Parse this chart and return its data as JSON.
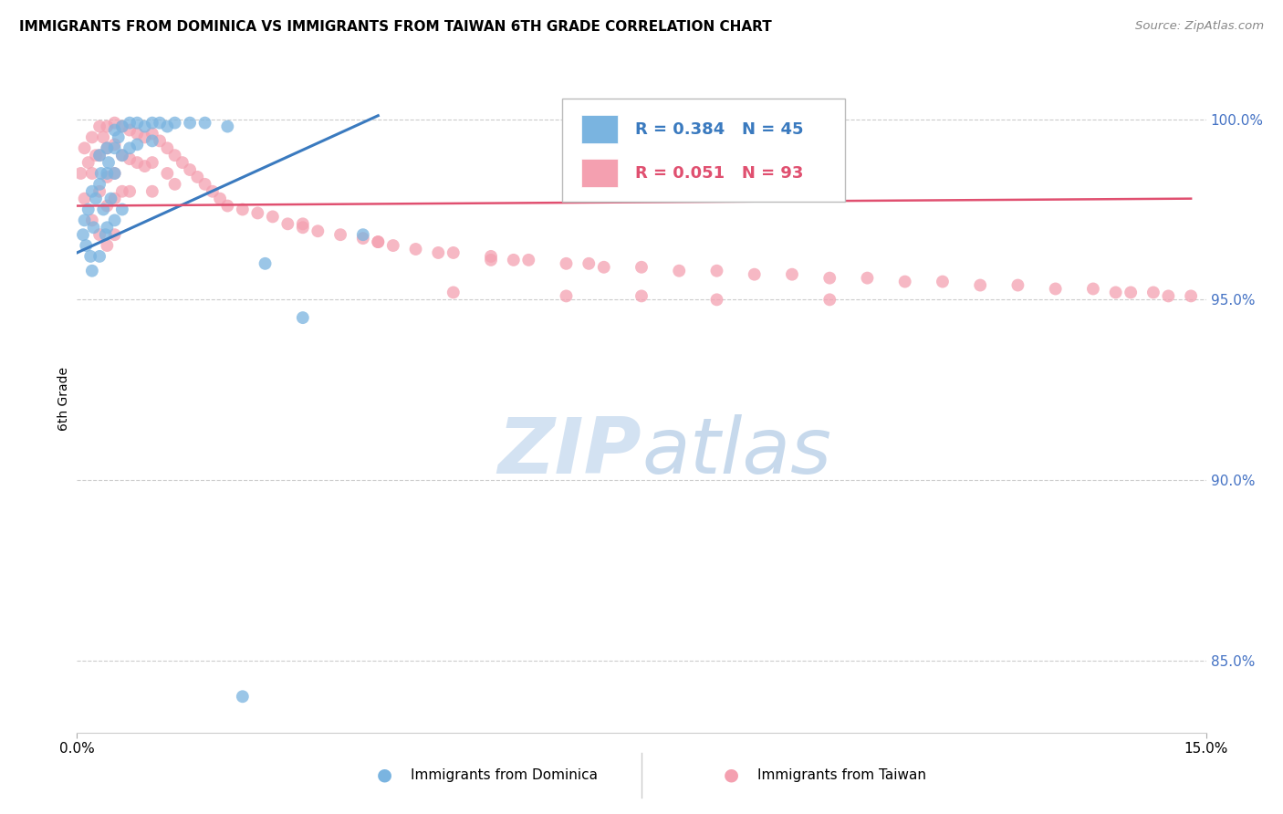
{
  "title": "IMMIGRANTS FROM DOMINICA VS IMMIGRANTS FROM TAIWAN 6TH GRADE CORRELATION CHART",
  "source": "Source: ZipAtlas.com",
  "ylabel": "6th Grade",
  "ylabel_ticks": [
    "85.0%",
    "90.0%",
    "95.0%",
    "100.0%"
  ],
  "ylabel_tick_vals": [
    0.85,
    0.9,
    0.95,
    1.0
  ],
  "xlim": [
    0.0,
    0.15
  ],
  "ylim": [
    0.83,
    1.015
  ],
  "legend_blue_r": "0.384",
  "legend_blue_n": "45",
  "legend_pink_r": "0.051",
  "legend_pink_n": "93",
  "blue_color": "#7ab4e0",
  "pink_color": "#f4a0b0",
  "line_blue_color": "#3a7abf",
  "line_pink_color": "#e05070",
  "grid_color": "#cccccc",
  "background_color": "#ffffff",
  "dominica_x": [
    0.0008,
    0.001,
    0.0012,
    0.0015,
    0.0018,
    0.002,
    0.002,
    0.0022,
    0.0025,
    0.003,
    0.003,
    0.003,
    0.0032,
    0.0035,
    0.0038,
    0.004,
    0.004,
    0.004,
    0.0042,
    0.0045,
    0.005,
    0.005,
    0.005,
    0.005,
    0.0055,
    0.006,
    0.006,
    0.006,
    0.007,
    0.007,
    0.008,
    0.008,
    0.009,
    0.01,
    0.01,
    0.011,
    0.012,
    0.013,
    0.015,
    0.017,
    0.02,
    0.022,
    0.025,
    0.03,
    0.038
  ],
  "dominica_y": [
    0.968,
    0.972,
    0.965,
    0.975,
    0.962,
    0.98,
    0.958,
    0.97,
    0.978,
    0.99,
    0.982,
    0.962,
    0.985,
    0.975,
    0.968,
    0.992,
    0.985,
    0.97,
    0.988,
    0.978,
    0.997,
    0.992,
    0.985,
    0.972,
    0.995,
    0.998,
    0.99,
    0.975,
    0.999,
    0.992,
    0.999,
    0.993,
    0.998,
    0.999,
    0.994,
    0.999,
    0.998,
    0.999,
    0.999,
    0.999,
    0.998,
    0.84,
    0.96,
    0.945,
    0.968
  ],
  "taiwan_x": [
    0.0005,
    0.001,
    0.001,
    0.0015,
    0.002,
    0.002,
    0.002,
    0.0025,
    0.003,
    0.003,
    0.003,
    0.003,
    0.0035,
    0.004,
    0.004,
    0.004,
    0.004,
    0.004,
    0.005,
    0.005,
    0.005,
    0.005,
    0.005,
    0.006,
    0.006,
    0.006,
    0.007,
    0.007,
    0.007,
    0.008,
    0.008,
    0.009,
    0.009,
    0.01,
    0.01,
    0.01,
    0.011,
    0.012,
    0.012,
    0.013,
    0.013,
    0.014,
    0.015,
    0.016,
    0.017,
    0.018,
    0.019,
    0.02,
    0.022,
    0.024,
    0.026,
    0.028,
    0.03,
    0.032,
    0.035,
    0.038,
    0.04,
    0.042,
    0.045,
    0.048,
    0.05,
    0.055,
    0.058,
    0.06,
    0.065,
    0.068,
    0.07,
    0.075,
    0.08,
    0.085,
    0.09,
    0.095,
    0.1,
    0.105,
    0.11,
    0.115,
    0.12,
    0.125,
    0.13,
    0.135,
    0.138,
    0.14,
    0.143,
    0.145,
    0.148,
    0.05,
    0.065,
    0.075,
    0.085,
    0.1,
    0.055,
    0.04,
    0.03
  ],
  "taiwan_y": [
    0.985,
    0.992,
    0.978,
    0.988,
    0.995,
    0.985,
    0.972,
    0.99,
    0.998,
    0.99,
    0.98,
    0.968,
    0.995,
    0.998,
    0.992,
    0.984,
    0.976,
    0.965,
    0.999,
    0.993,
    0.985,
    0.978,
    0.968,
    0.998,
    0.99,
    0.98,
    0.997,
    0.989,
    0.98,
    0.996,
    0.988,
    0.995,
    0.987,
    0.996,
    0.988,
    0.98,
    0.994,
    0.992,
    0.985,
    0.99,
    0.982,
    0.988,
    0.986,
    0.984,
    0.982,
    0.98,
    0.978,
    0.976,
    0.975,
    0.974,
    0.973,
    0.971,
    0.97,
    0.969,
    0.968,
    0.967,
    0.966,
    0.965,
    0.964,
    0.963,
    0.963,
    0.962,
    0.961,
    0.961,
    0.96,
    0.96,
    0.959,
    0.959,
    0.958,
    0.958,
    0.957,
    0.957,
    0.956,
    0.956,
    0.955,
    0.955,
    0.954,
    0.954,
    0.953,
    0.953,
    0.952,
    0.952,
    0.952,
    0.951,
    0.951,
    0.952,
    0.951,
    0.951,
    0.95,
    0.95,
    0.961,
    0.966,
    0.971
  ]
}
